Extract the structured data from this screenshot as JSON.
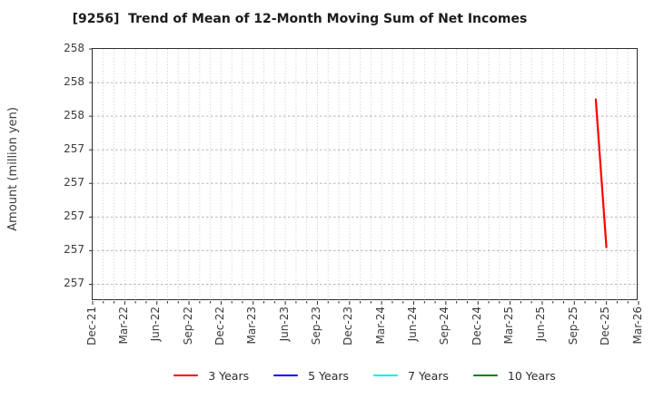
{
  "chart_data": {
    "type": "line",
    "title": "[9256]  Trend of Mean of 12-Month Moving Sum of Net Incomes",
    "ylabel": "Amount (million yen)",
    "xlabel": "",
    "x_tick_labels": [
      "Dec-21",
      "Mar-22",
      "Jun-22",
      "Sep-22",
      "Dec-22",
      "Mar-23",
      "Jun-23",
      "Sep-23",
      "Dec-23",
      "Mar-24",
      "Jun-24",
      "Sep-24",
      "Dec-24",
      "Mar-25",
      "Jun-25",
      "Sep-25",
      "Dec-25",
      "Mar-26"
    ],
    "months_per_tick": 3,
    "x_domain_months": 51,
    "ylim": [
      256.5,
      258.0
    ],
    "y_ticks": [
      {
        "value": 258.0,
        "label": "258"
      },
      {
        "value": 257.8,
        "label": "258"
      },
      {
        "value": 257.6,
        "label": "258"
      },
      {
        "value": 257.4,
        "label": "257"
      },
      {
        "value": 257.2,
        "label": "257"
      },
      {
        "value": 257.0,
        "label": "257"
      },
      {
        "value": 256.8,
        "label": "257"
      },
      {
        "value": 256.6,
        "label": "257"
      }
    ],
    "grid": true,
    "legend_position": "bottom",
    "series": [
      {
        "name": "3 Years",
        "color": "#ff0000",
        "points": [
          {
            "month": "Nov-25",
            "month_index": 47,
            "value": 257.7
          },
          {
            "month": "Dec-25",
            "month_index": 48,
            "value": 256.82
          }
        ]
      },
      {
        "name": "5 Years",
        "color": "#0000ff",
        "points": []
      },
      {
        "name": "7 Years",
        "color": "#00eeee",
        "points": []
      },
      {
        "name": "10 Years",
        "color": "#008000",
        "points": []
      }
    ],
    "style": {
      "grid_v_color": "#c9c9c9",
      "grid_h_color": "#b5b5b5",
      "tick_color": "#2e2e2e",
      "spine_color": "#2e2e2e"
    }
  }
}
